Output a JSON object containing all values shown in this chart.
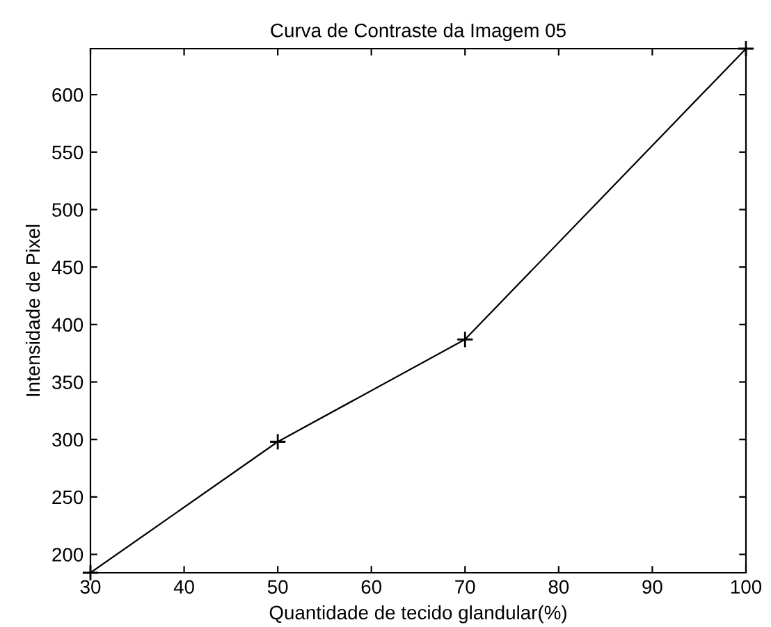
{
  "chart_data": {
    "type": "line",
    "title": "Curva de Contraste da Imagem 05",
    "xlabel": "Quantidade de tecido glandular(%)",
    "ylabel": "Intensidade de Pixel",
    "x": [
      30,
      50,
      70,
      100
    ],
    "series": [
      {
        "color": "#000000",
        "values": [
          184,
          298,
          387,
          640
        ]
      }
    ],
    "xlim": [
      30,
      100
    ],
    "xticks": [
      30,
      40,
      50,
      60,
      70,
      80,
      90,
      100
    ],
    "ylim": [
      184,
      640
    ],
    "yticks": [
      200,
      250,
      300,
      350,
      400,
      450,
      500,
      550,
      600
    ],
    "marker": "cross",
    "line_style": "solid",
    "grid": false,
    "legend": false
  }
}
